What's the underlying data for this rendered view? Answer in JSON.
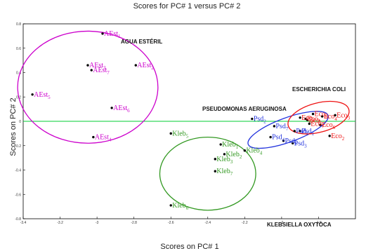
{
  "chart_data": {
    "type": "scatter",
    "title": "Scores for PC# 1 versus PC# 2",
    "xlabel": "Scores on PC# 1",
    "ylabel": "Scores on PC# 2",
    "xlim": [
      -3.4,
      -1.6
    ],
    "ylim": [
      -0.8,
      0.8
    ],
    "xticks": [
      "-3.4",
      "-3.2",
      "-3",
      "-2.8",
      "-2.6",
      "-2.4",
      "-2.2",
      "-2",
      "-1.8"
    ],
    "yticks": [
      "0.8",
      "0.6",
      "0.4",
      "0.2",
      "0",
      "-0.2",
      "-0.4",
      "-0.6",
      "-0.8"
    ],
    "zero_line_color": "#00cc33",
    "groups": [
      {
        "name": "AGUA ESTÉRIL",
        "color": "#cc00cc",
        "ellipse": {
          "cx": -3.05,
          "cy": 0.28,
          "rx": 0.38,
          "ry": 0.46
        },
        "points": [
          {
            "base": "AEst",
            "sub": "1",
            "x": -2.97,
            "y": 0.72
          },
          {
            "base": "AEst",
            "sub": "2",
            "x": -2.79,
            "y": 0.46
          },
          {
            "base": "AEst",
            "sub": "3",
            "x": -3.05,
            "y": 0.46
          },
          {
            "base": "AEst",
            "sub": "4",
            "x": -3.02,
            "y": -0.13
          },
          {
            "base": "AEst",
            "sub": "5",
            "x": -3.35,
            "y": 0.22
          },
          {
            "base": "AEst",
            "sub": "6",
            "x": -2.92,
            "y": 0.11
          },
          {
            "base": "AEst",
            "sub": "7",
            "x": -3.03,
            "y": 0.42
          }
        ]
      },
      {
        "name": "KLEBSIELLA OXYTOCA",
        "color": "#339922",
        "ellipse": {
          "cx": -2.4,
          "cy": -0.43,
          "rx": 0.26,
          "ry": 0.3
        },
        "points": [
          {
            "base": "Kleb",
            "sub": "1",
            "x": -2.33,
            "y": -0.19
          },
          {
            "base": "Kleb",
            "sub": "2",
            "x": -2.31,
            "y": -0.27
          },
          {
            "base": "Kleb",
            "sub": "3",
            "x": -2.36,
            "y": -0.31
          },
          {
            "base": "Kleb",
            "sub": "4",
            "x": -2.2,
            "y": -0.24
          },
          {
            "base": "Kleb",
            "sub": "5",
            "x": -2.6,
            "y": -0.1
          },
          {
            "base": "Kleb",
            "sub": "6",
            "x": -2.6,
            "y": -0.69
          },
          {
            "base": "Kleb",
            "sub": "7",
            "x": -2.36,
            "y": -0.41
          }
        ]
      },
      {
        "name": "PSEUDOMONAS AERUGINOSA",
        "color": "#2233dd",
        "ellipse": {
          "cx": -1.965,
          "cy": -0.07,
          "rx": 0.23,
          "ry": 0.1,
          "rotate": -20
        },
        "points": [
          {
            "base": "Psd",
            "sub": "1",
            "x": -1.9,
            "y": -0.08
          },
          {
            "base": "Psd",
            "sub": "2",
            "x": -2.16,
            "y": 0.02
          },
          {
            "base": "Psd",
            "sub": "3",
            "x": -1.94,
            "y": -0.18
          },
          {
            "base": "Psd",
            "sub": "4",
            "x": -2.06,
            "y": -0.13
          },
          {
            "base": "Psd",
            "sub": "5",
            "x": -1.93,
            "y": -0.08
          },
          {
            "base": "Psd",
            "sub": "6",
            "x": -1.99,
            "y": -0.16
          },
          {
            "base": "Psd",
            "sub": "7",
            "x": -2.04,
            "y": -0.04
          }
        ]
      },
      {
        "name": "ESCHERICHIA COLI",
        "color": "#ee1111",
        "ellipse": {
          "cx": -1.8,
          "cy": 0.03,
          "rx": 0.17,
          "ry": 0.12,
          "rotate": -15
        },
        "points": [
          {
            "base": "Eco",
            "sub": "1",
            "x": -1.86,
            "y": 0.01
          },
          {
            "base": "Eco",
            "sub": "2",
            "x": -1.74,
            "y": -0.12
          },
          {
            "base": "Eco",
            "sub": "3",
            "x": -1.71,
            "y": 0.05
          },
          {
            "base": "Eco",
            "sub": "4",
            "x": -1.78,
            "y": 0.04
          },
          {
            "base": "Eco",
            "sub": "5",
            "x": -1.9,
            "y": 0.03
          },
          {
            "base": "Eco",
            "sub": "6",
            "x": -1.79,
            "y": -0.03
          },
          {
            "base": "Eco",
            "sub": "7",
            "x": -1.85,
            "y": -0.02
          },
          {
            "base": "Eco",
            "sub": "8",
            "x": -1.87,
            "y": 0.02
          },
          {
            "base": "Eco",
            "sub": "9",
            "x": -1.83,
            "y": 0.06
          }
        ]
      }
    ]
  }
}
